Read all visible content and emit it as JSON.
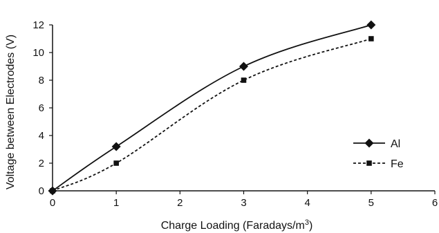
{
  "chart_data": {
    "type": "line",
    "title": "",
    "xlabel": "Charge Loading (Faradays/m",
    "xlabel_superscript": "3",
    "xlabel_suffix": ")",
    "ylabel": "Voltage between Electrodes (V)",
    "xlim": [
      0,
      6
    ],
    "ylim": [
      0,
      12
    ],
    "x_ticks": [
      "0",
      "1",
      "2",
      "3",
      "4",
      "5",
      "6"
    ],
    "y_ticks": [
      "0",
      "2",
      "4",
      "6",
      "8",
      "10",
      "12"
    ],
    "grid": false,
    "legend_position": "right",
    "series": [
      {
        "name": "Al",
        "marker": "diamond",
        "line": "solid",
        "color": "#111111",
        "x": [
          0,
          1,
          3,
          5
        ],
        "y": [
          0,
          3.2,
          9,
          12
        ]
      },
      {
        "name": "Fe",
        "marker": "square",
        "line": "dashed",
        "color": "#111111",
        "x": [
          0,
          1,
          3,
          5
        ],
        "y": [
          0,
          2,
          8,
          11
        ]
      }
    ]
  }
}
